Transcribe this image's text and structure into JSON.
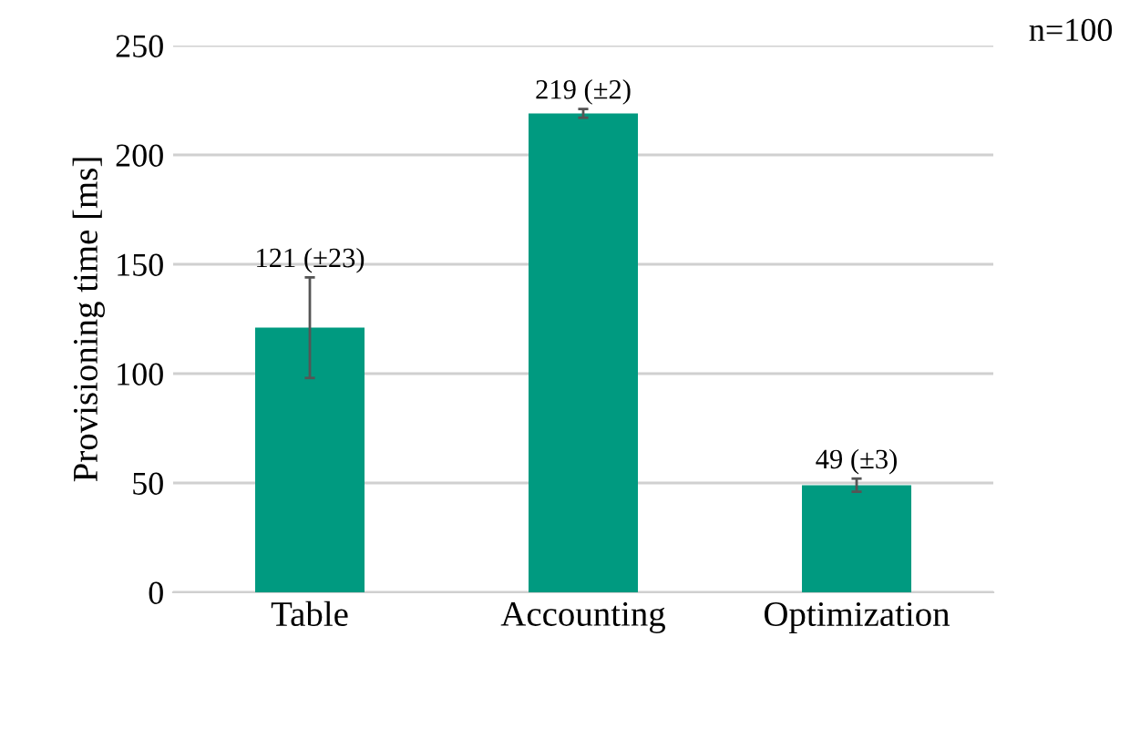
{
  "chart_data": {
    "type": "bar",
    "categories": [
      "Table",
      "Accounting",
      "Optimization"
    ],
    "values": [
      121,
      219,
      49
    ],
    "errors": [
      23,
      2,
      3
    ],
    "value_labels": [
      "121 (±23)",
      "219 (±2)",
      "49 (±3)"
    ],
    "color": "#009a80",
    "ylabel": "Provisioning time [ms]",
    "ylim": [
      0,
      250
    ],
    "yticks": [
      0,
      50,
      100,
      150,
      200,
      250
    ],
    "grid": "y",
    "annotations": [
      "n=100"
    ]
  }
}
